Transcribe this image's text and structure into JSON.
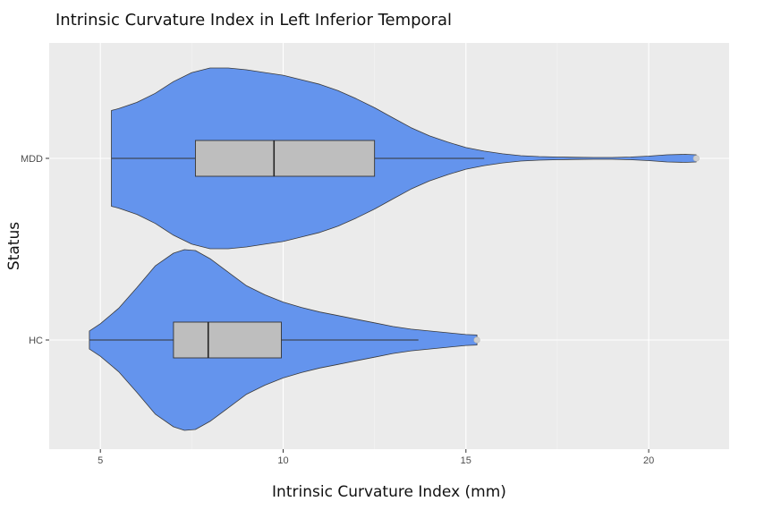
{
  "chart_data": {
    "type": "violin",
    "title": "Intrinsic Curvature Index in Left Inferior Temporal",
    "xlabel": "Intrinsic Curvature Index (mm)",
    "ylabel": "Status",
    "xlim": [
      3.6,
      22.2
    ],
    "x_ticks": [
      "5",
      "10",
      "15",
      "20"
    ],
    "x_tick_values": [
      5,
      10,
      15,
      20
    ],
    "categories": [
      "MDD",
      "HC"
    ],
    "grid": true,
    "legend": "none",
    "colors": {
      "panel_background": "#ebebeb",
      "grid_major": "#ffffff",
      "grid_minor": "#f4f4f4",
      "violin_fill": "#6494ed",
      "violin_stroke": "#3a3a3a",
      "box_fill": "#bebebe",
      "box_stroke": "#333333",
      "outlier": "#cfcfcf"
    },
    "series": [
      {
        "name": "MDD",
        "box": {
          "lower_whisker": 5.3,
          "q1": 7.6,
          "median": 9.75,
          "q3": 12.5,
          "upper_whisker": 15.5
        },
        "outliers": [
          21.3
        ],
        "density": [
          [
            5.3,
            0.53
          ],
          [
            5.5,
            0.55
          ],
          [
            6.0,
            0.62
          ],
          [
            6.5,
            0.72
          ],
          [
            7.0,
            0.85
          ],
          [
            7.5,
            0.95
          ],
          [
            8.0,
            1.0
          ],
          [
            8.5,
            1.0
          ],
          [
            9.0,
            0.98
          ],
          [
            9.5,
            0.95
          ],
          [
            10.0,
            0.92
          ],
          [
            10.5,
            0.87
          ],
          [
            11.0,
            0.82
          ],
          [
            11.5,
            0.75
          ],
          [
            12.0,
            0.66
          ],
          [
            12.5,
            0.56
          ],
          [
            13.0,
            0.45
          ],
          [
            13.5,
            0.34
          ],
          [
            14.0,
            0.25
          ],
          [
            14.5,
            0.18
          ],
          [
            15.0,
            0.12
          ],
          [
            15.5,
            0.08
          ],
          [
            16.0,
            0.05
          ],
          [
            16.5,
            0.03
          ],
          [
            17.0,
            0.02
          ],
          [
            17.5,
            0.015
          ],
          [
            18.0,
            0.012
          ],
          [
            18.5,
            0.01
          ],
          [
            19.0,
            0.01
          ],
          [
            19.5,
            0.015
          ],
          [
            20.0,
            0.025
          ],
          [
            20.5,
            0.04
          ],
          [
            21.0,
            0.045
          ],
          [
            21.3,
            0.04
          ]
        ]
      },
      {
        "name": "HC",
        "box": {
          "lower_whisker": 4.7,
          "q1": 7.0,
          "median": 7.95,
          "q3": 9.95,
          "upper_whisker": 13.7
        },
        "outliers": [
          15.3
        ],
        "density": [
          [
            4.7,
            0.1
          ],
          [
            5.0,
            0.18
          ],
          [
            5.5,
            0.35
          ],
          [
            6.0,
            0.58
          ],
          [
            6.5,
            0.82
          ],
          [
            7.0,
            0.96
          ],
          [
            7.3,
            1.0
          ],
          [
            7.6,
            0.99
          ],
          [
            8.0,
            0.9
          ],
          [
            8.5,
            0.75
          ],
          [
            9.0,
            0.6
          ],
          [
            9.5,
            0.5
          ],
          [
            10.0,
            0.42
          ],
          [
            10.5,
            0.36
          ],
          [
            11.0,
            0.31
          ],
          [
            11.5,
            0.27
          ],
          [
            12.0,
            0.23
          ],
          [
            12.5,
            0.19
          ],
          [
            13.0,
            0.15
          ],
          [
            13.5,
            0.12
          ],
          [
            14.0,
            0.1
          ],
          [
            14.5,
            0.08
          ],
          [
            15.0,
            0.06
          ],
          [
            15.3,
            0.055
          ]
        ]
      }
    ]
  }
}
